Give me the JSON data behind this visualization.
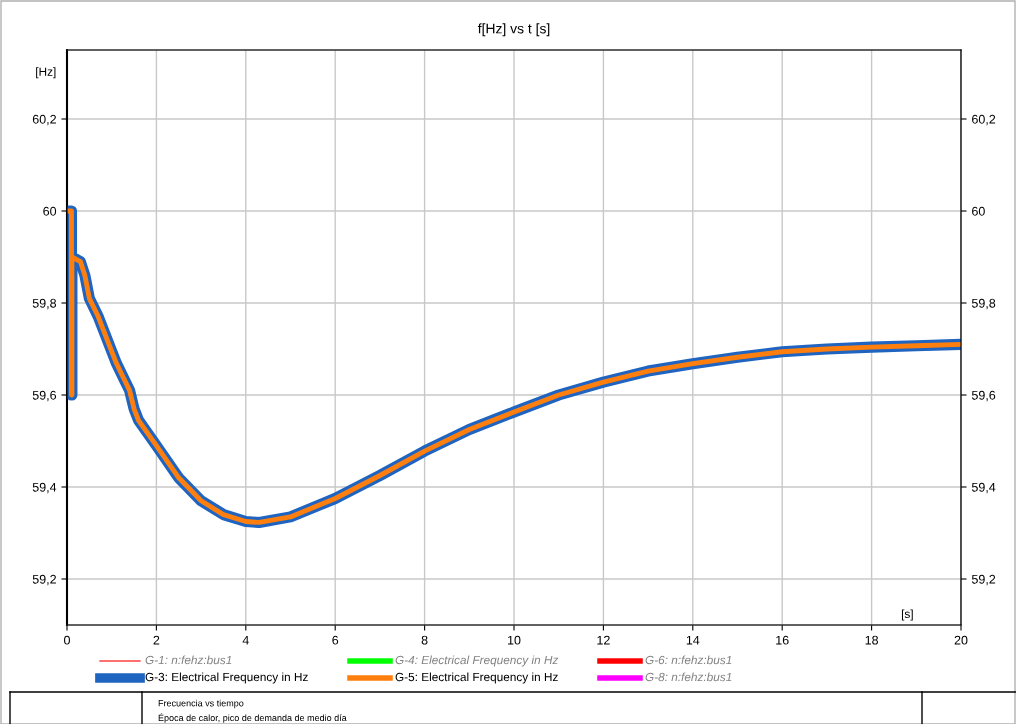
{
  "chart_data": {
    "type": "line",
    "title": "f[Hz] vs t [s]",
    "xlabel": "[s]",
    "ylabel": "[Hz]",
    "x": [
      0,
      0.1,
      0.1,
      0.11,
      0.11,
      0.3,
      0.4,
      0.5,
      0.7,
      0.9,
      1.1,
      1.3,
      1.4,
      1.5,
      1.6,
      2,
      2.5,
      3,
      3.5,
      4,
      4.3,
      5,
      6,
      7,
      8,
      9,
      10,
      11,
      12,
      13,
      14,
      15,
      16,
      17,
      18,
      19,
      20
    ],
    "series": [
      {
        "name": "G-1: n:fehz:bus1",
        "color": "#ff4040",
        "values": [
          null,
          null,
          null,
          null,
          null,
          null,
          null,
          null,
          null,
          null,
          null,
          null,
          null,
          null,
          null,
          null,
          null,
          null,
          null,
          null,
          null,
          null,
          null,
          null,
          null,
          null,
          null,
          null,
          null,
          null,
          null,
          null,
          null,
          null,
          null,
          null,
          null
        ]
      },
      {
        "name": "G-3: Electrical Frequency in Hz",
        "color": "#1f64c0",
        "values": [
          60,
          60,
          59.6,
          59.6,
          59.9,
          59.89,
          59.86,
          59.81,
          59.77,
          59.72,
          59.67,
          59.63,
          59.61,
          59.57,
          59.545,
          59.49,
          59.42,
          59.37,
          59.34,
          59.325,
          59.323,
          59.335,
          59.375,
          59.425,
          59.478,
          59.525,
          59.563,
          59.6,
          59.628,
          59.652,
          59.668,
          59.682,
          59.694,
          59.7,
          59.704,
          59.707,
          59.71
        ]
      },
      {
        "name": "G-4: Electrical Frequency in Hz",
        "color": "#00ff00",
        "values": [
          null,
          null,
          null,
          null,
          null,
          null,
          null,
          null,
          null,
          null,
          null,
          null,
          null,
          null,
          null,
          null,
          null,
          null,
          null,
          null,
          null,
          null,
          null,
          null,
          null,
          null,
          null,
          null,
          null,
          null,
          null,
          null,
          null,
          null,
          null,
          null,
          null
        ]
      },
      {
        "name": "G-5: Electrical Frequency in Hz",
        "color": "#ff7f0e",
        "values": [
          60,
          60,
          59.6,
          59.6,
          59.9,
          59.89,
          59.86,
          59.81,
          59.77,
          59.72,
          59.67,
          59.63,
          59.61,
          59.57,
          59.545,
          59.49,
          59.42,
          59.37,
          59.34,
          59.325,
          59.323,
          59.335,
          59.375,
          59.425,
          59.478,
          59.525,
          59.563,
          59.6,
          59.628,
          59.652,
          59.668,
          59.682,
          59.694,
          59.7,
          59.704,
          59.707,
          59.71
        ]
      },
      {
        "name": "G-6: n:fehz:bus1",
        "color": "#ff0000",
        "values": [
          null,
          null,
          null,
          null,
          null,
          null,
          null,
          null,
          null,
          null,
          null,
          null,
          null,
          null,
          null,
          null,
          null,
          null,
          null,
          null,
          null,
          null,
          null,
          null,
          null,
          null,
          null,
          null,
          null,
          null,
          null,
          null,
          null,
          null,
          null,
          null,
          null
        ]
      },
      {
        "name": "G-8: n:fehz:bus1",
        "color": "#ff00ff",
        "values": [
          null,
          null,
          null,
          null,
          null,
          null,
          null,
          null,
          null,
          null,
          null,
          null,
          null,
          null,
          null,
          null,
          null,
          null,
          null,
          null,
          null,
          null,
          null,
          null,
          null,
          null,
          null,
          null,
          null,
          null,
          null,
          null,
          null,
          null,
          null,
          null,
          null
        ]
      }
    ],
    "xlim": [
      0,
      20
    ],
    "xticks": [
      0,
      2,
      4,
      6,
      8,
      10,
      12,
      14,
      16,
      18,
      20
    ],
    "ylim": [
      59.1,
      60.35
    ],
    "yticks": [
      {
        "value": 59.2,
        "label": "59,2"
      },
      {
        "value": 59.4,
        "label": "59,4"
      },
      {
        "value": 59.6,
        "label": "59,6"
      },
      {
        "value": 59.8,
        "label": "59,8"
      },
      60,
      {
        "value": 60.2,
        "label": "60,2"
      }
    ],
    "y2lim": [
      59.1,
      60.35
    ],
    "y2ticks": [
      {
        "value": 59.2,
        "label": "59,2"
      },
      {
        "value": 59.4,
        "label": "59,4"
      },
      {
        "value": 59.6,
        "label": "59,6"
      },
      {
        "value": 59.8,
        "label": "59,8"
      },
      60,
      {
        "value": 60.2,
        "label": "60,2"
      }
    ],
    "grid": true,
    "legend": "bottom",
    "marker": "none",
    "line_style": "solid",
    "annotations": [
      "Frecuencia vs tiempo",
      "Época de calor, pico de demanda de medio día"
    ]
  }
}
